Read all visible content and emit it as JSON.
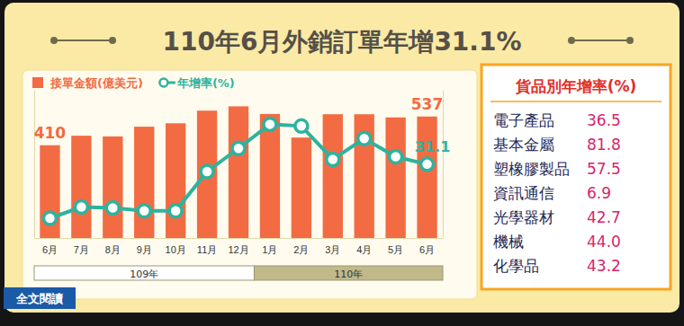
{
  "chart_data": {
    "type": "bar",
    "title": "110年6月外銷訂單年增31.1%",
    "categories": [
      "6月",
      "7月",
      "8月",
      "9月",
      "10月",
      "11月",
      "12月",
      "1月",
      "2月",
      "3月",
      "4月",
      "5月",
      "6月"
    ],
    "x_groups": [
      {
        "label": "109年",
        "span": 7
      },
      {
        "label": "110年",
        "span": 6
      }
    ],
    "series": [
      {
        "name": "接單金額(億美元)",
        "type": "bar",
        "color": "#f26b43",
        "values": [
          410,
          452,
          449,
          492,
          507,
          563,
          582,
          548,
          444,
          547,
          547,
          533,
          537
        ],
        "value_labels": [
          "410",
          null,
          null,
          null,
          null,
          null,
          null,
          null,
          null,
          null,
          null,
          null,
          "537"
        ]
      },
      {
        "name": "年增率(%)",
        "type": "line",
        "axis": "y2",
        "color": "#2db39e",
        "marker": "circle",
        "values": [
          6.5,
          11.6,
          11.2,
          9.9,
          9.9,
          27.8,
          38.3,
          49.3,
          48.5,
          33.3,
          42.8,
          34.5,
          31.1
        ],
        "value_labels": [
          null,
          null,
          null,
          null,
          null,
          null,
          null,
          null,
          null,
          null,
          null,
          null,
          "31.1"
        ]
      }
    ],
    "ylim": [
      0,
      655
    ],
    "yticks": [],
    "y2lim": [
      -2.5,
      65
    ],
    "y2ticks": [],
    "tick_labels": "x",
    "data_labels": true,
    "legend": "top-left",
    "grid": false
  },
  "panel": {
    "title": "貨品別年增率(%)",
    "rows": [
      {
        "label": "電子產品",
        "value": "36.5"
      },
      {
        "label": "基本金屬",
        "value": "81.8"
      },
      {
        "label": "塑橡膠製品",
        "value": "57.5"
      },
      {
        "label": "資訊通信",
        "value": "6.9"
      },
      {
        "label": "光學器材",
        "value": "42.7"
      },
      {
        "label": "機械",
        "value": "44.0"
      },
      {
        "label": "化學品",
        "value": "43.2"
      }
    ]
  },
  "button": {
    "label": "全文閱讀"
  }
}
